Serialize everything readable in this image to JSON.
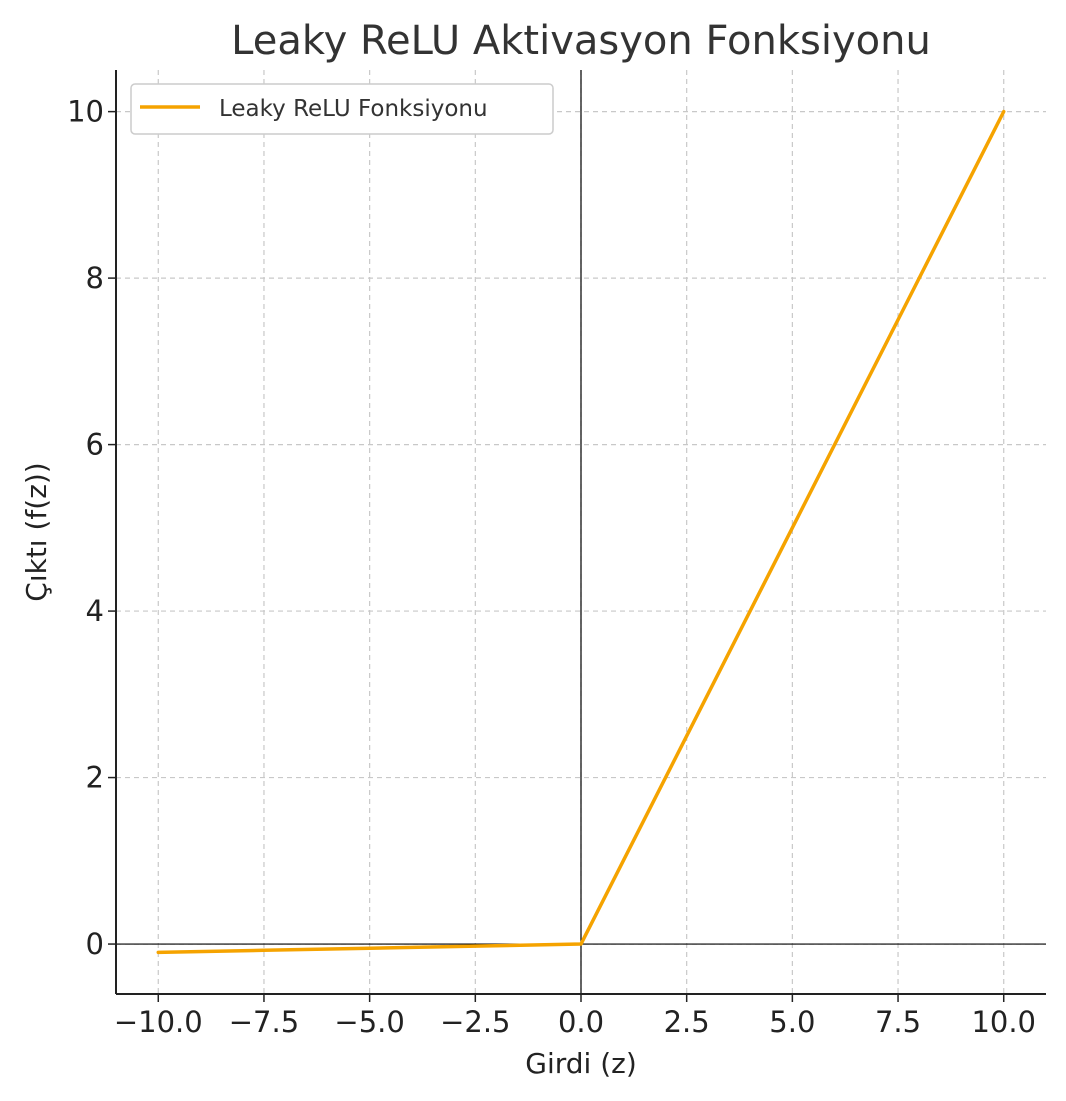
{
  "chart_data": {
    "type": "line",
    "title": "Leaky ReLU Aktivasyon Fonksiyonu",
    "xlabel": "Girdi (z)",
    "ylabel": "Çıktı (f(z))",
    "xlim": [
      -11,
      11
    ],
    "ylim": [
      -0.6,
      10.5
    ],
    "xticks": [
      -10,
      -7.5,
      -5,
      -2.5,
      0,
      2.5,
      5,
      7.5,
      10
    ],
    "xtick_labels": [
      "−10.0",
      "−7.5",
      "−5.0",
      "−2.5",
      "0.0",
      "2.5",
      "5.0",
      "7.5",
      "10.0"
    ],
    "yticks": [
      0,
      2,
      4,
      6,
      8,
      10
    ],
    "ytick_labels": [
      "0",
      "2",
      "4",
      "6",
      "8",
      "10"
    ],
    "grid": true,
    "legend_position": "top-left",
    "reference_lines": {
      "x": 0,
      "y": 0
    },
    "series": [
      {
        "name": "Leaky ReLU Fonksiyonu",
        "color": "#f5a300",
        "x": [
          -10,
          -7.5,
          -5,
          -2.5,
          0,
          0.1,
          2.5,
          5,
          7.5,
          10
        ],
        "y": [
          -0.1,
          -0.075,
          -0.05,
          -0.025,
          0,
          0.1,
          2.5,
          5,
          7.5,
          10
        ]
      }
    ]
  }
}
